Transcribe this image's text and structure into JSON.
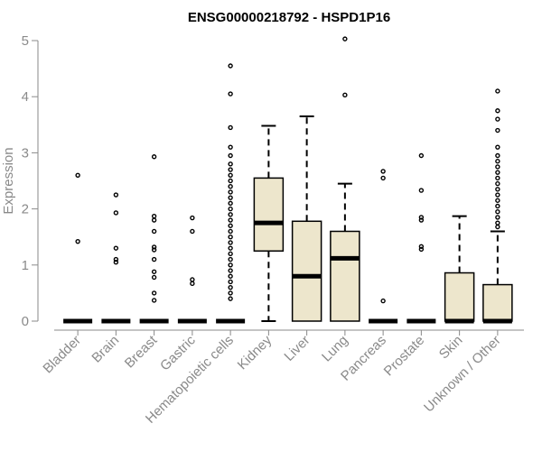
{
  "chart_data": {
    "type": "box",
    "title": "ENSG00000218792 - HSPD1P16",
    "ylabel": "Expression",
    "xlabel": "",
    "ylim": [
      0,
      5
    ],
    "yticks": [
      0,
      1,
      2,
      3,
      4,
      5
    ],
    "grid": false,
    "box_fill": "#ede6cc",
    "box_stroke": "#000000",
    "median_color": "#000000",
    "axis_color": "#8a8a8a",
    "categories": [
      "Bladder",
      "Brain",
      "Breast",
      "Gastric",
      "Hematopoietic cells",
      "Kidney",
      "Liver",
      "Lung",
      "Pancreas",
      "Prostate",
      "Skin",
      "Unknown / Other"
    ],
    "boxes": [
      {
        "category": "Bladder",
        "q1": 0,
        "median": 0,
        "q3": 0,
        "whisker_low": 0,
        "whisker_high": 0,
        "outliers": [
          2.6,
          1.42
        ]
      },
      {
        "category": "Brain",
        "q1": 0,
        "median": 0,
        "q3": 0,
        "whisker_low": 0,
        "whisker_high": 0,
        "outliers": [
          2.25,
          1.93,
          1.3,
          1.1,
          1.05
        ]
      },
      {
        "category": "Breast",
        "q1": 0,
        "median": 0,
        "q3": 0,
        "whisker_low": 0,
        "whisker_high": 0,
        "outliers": [
          2.93,
          1.87,
          1.8,
          1.6,
          1.32,
          1.27,
          1.1,
          0.88,
          0.78,
          0.5,
          0.37
        ]
      },
      {
        "category": "Gastric",
        "q1": 0,
        "median": 0,
        "q3": 0,
        "whisker_low": 0,
        "whisker_high": 0,
        "outliers": [
          1.84,
          1.6,
          0.74,
          0.67
        ]
      },
      {
        "category": "Hematopoietic cells",
        "q1": 0,
        "median": 0,
        "q3": 0,
        "whisker_low": 0,
        "whisker_high": 0,
        "outliers": [
          4.55,
          4.05,
          3.45,
          3.1,
          2.95,
          2.8,
          2.7,
          2.6,
          2.5,
          2.4,
          2.3,
          2.2,
          2.1,
          2.0,
          1.9,
          1.8,
          1.7,
          1.6,
          1.5,
          1.4,
          1.3,
          1.2,
          1.1,
          1.0,
          0.9,
          0.8,
          0.7,
          0.6,
          0.5,
          0.4
        ]
      },
      {
        "category": "Kidney",
        "q1": 1.25,
        "median": 1.75,
        "q3": 2.55,
        "whisker_low": 0,
        "whisker_high": 3.48,
        "outliers": []
      },
      {
        "category": "Liver",
        "q1": 0,
        "median": 0.8,
        "q3": 1.78,
        "whisker_low": 0,
        "whisker_high": 3.65,
        "outliers": []
      },
      {
        "category": "Lung",
        "q1": 0,
        "median": 1.12,
        "q3": 1.6,
        "whisker_low": 0,
        "whisker_high": 2.45,
        "outliers": [
          5.03,
          4.03
        ]
      },
      {
        "category": "Pancreas",
        "q1": 0,
        "median": 0,
        "q3": 0,
        "whisker_low": 0,
        "whisker_high": 0,
        "outliers": [
          2.67,
          2.55,
          0.36
        ]
      },
      {
        "category": "Prostate",
        "q1": 0,
        "median": 0,
        "q3": 0,
        "whisker_low": 0,
        "whisker_high": 0,
        "outliers": [
          2.95,
          2.33,
          1.85,
          1.8,
          1.33,
          1.28
        ]
      },
      {
        "category": "Skin",
        "q1": 0,
        "median": 0,
        "q3": 0.86,
        "whisker_low": 0,
        "whisker_high": 1.87,
        "outliers": []
      },
      {
        "category": "Unknown / Other",
        "q1": 0,
        "median": 0,
        "q3": 0.65,
        "whisker_low": 0,
        "whisker_high": 1.6,
        "outliers": [
          4.1,
          3.75,
          3.6,
          3.4,
          3.1,
          2.95,
          2.85,
          2.75,
          2.65,
          2.55,
          2.45,
          2.35,
          2.25,
          2.15,
          2.05,
          1.95,
          1.85,
          1.75,
          1.68
        ]
      }
    ]
  }
}
